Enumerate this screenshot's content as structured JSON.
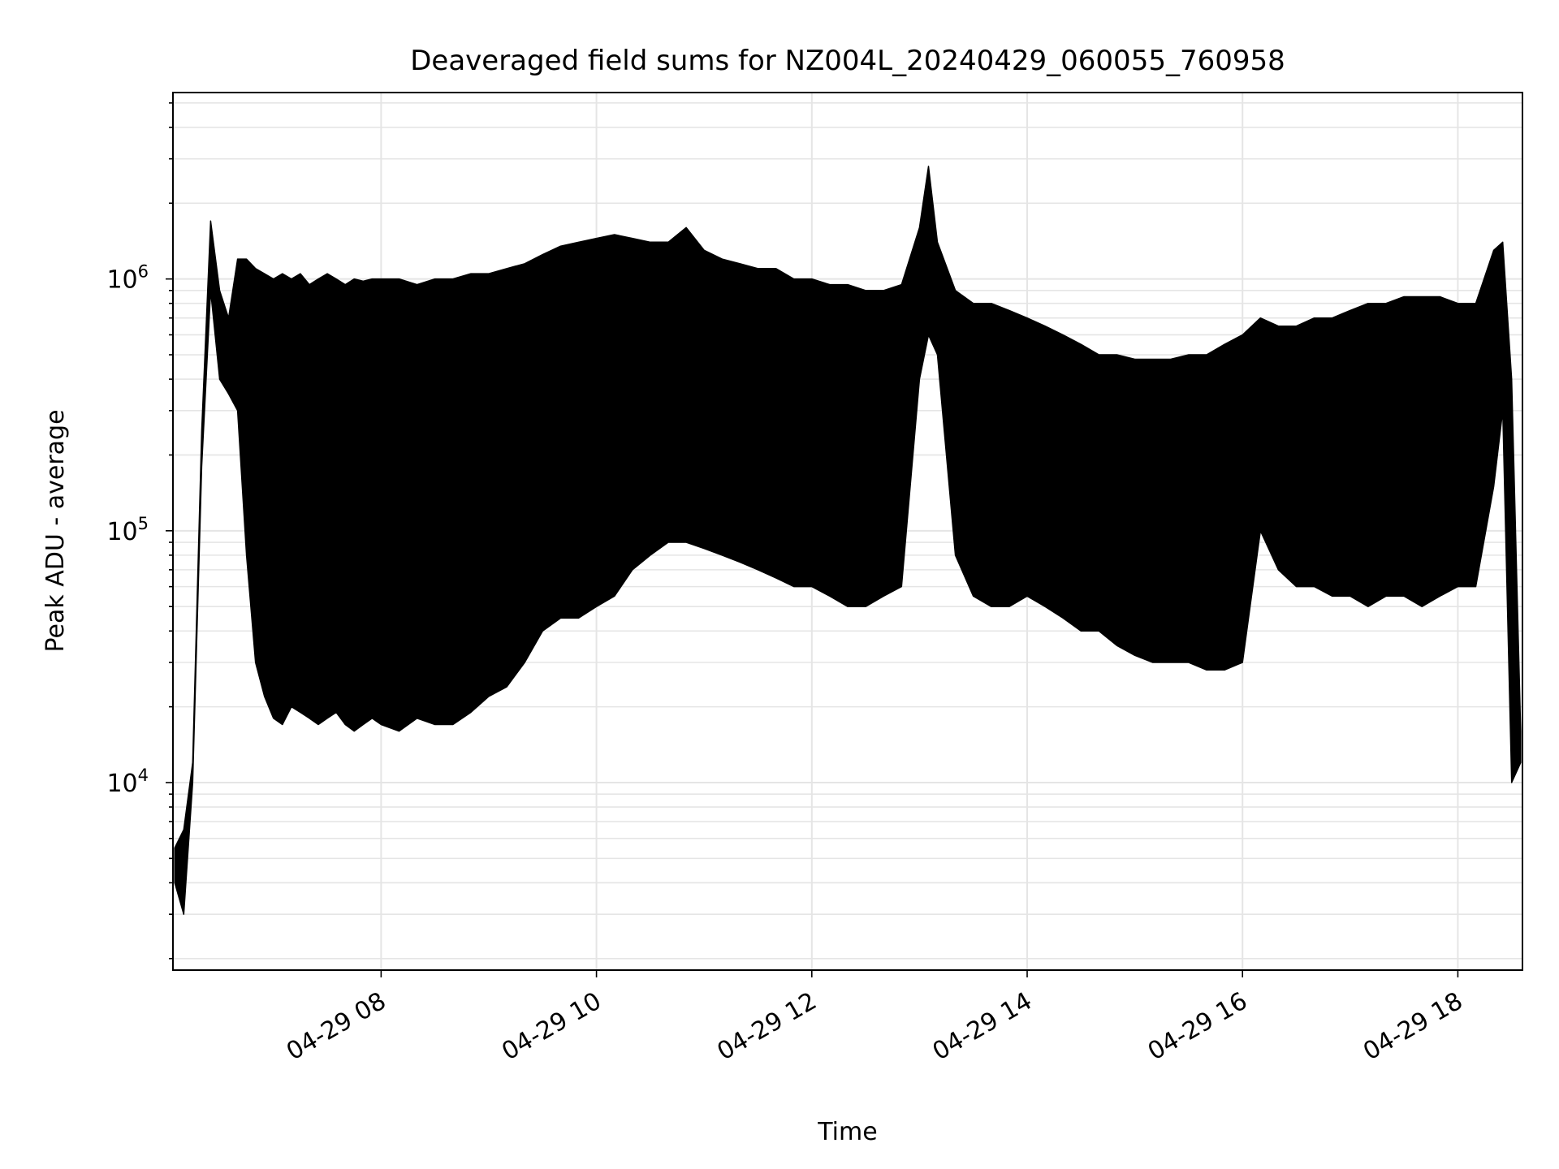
{
  "chart_data": {
    "type": "line",
    "title": "Deaveraged field sums for NZ004L_20240429_060055_760958",
    "xlabel": "Time",
    "ylabel": "Peak ADU - average",
    "yscale": "log",
    "ylim": [
      1800,
      5500000
    ],
    "xlim": [
      "04-29 06:04",
      "04-29 18:36"
    ],
    "x_ticks": [
      "04-29 08",
      "04-29 10",
      "04-29 12",
      "04-29 14",
      "04-29 16",
      "04-29 18"
    ],
    "y_tick_values": [
      10000,
      100000,
      1000000
    ],
    "y_tick_labels": [
      {
        "base": "10",
        "exp": "4"
      },
      {
        "base": "10",
        "exp": "5"
      },
      {
        "base": "10",
        "exp": "6"
      }
    ],
    "grid": "on",
    "series": [
      {
        "color": "#000000",
        "x": [
          "04-29 06:05",
          "04-29 06:10",
          "04-29 06:15",
          "04-29 06:20",
          "04-29 06:25",
          "04-29 06:30",
          "04-29 06:35",
          "04-29 06:40",
          "04-29 06:45",
          "04-29 06:50",
          "04-29 06:55",
          "04-29 07:00",
          "04-29 07:05",
          "04-29 07:10",
          "04-29 07:15",
          "04-29 07:20",
          "04-29 07:25",
          "04-29 07:30",
          "04-29 07:35",
          "04-29 07:40",
          "04-29 07:45",
          "04-29 07:50",
          "04-29 07:55",
          "04-29 08:00",
          "04-29 08:10",
          "04-29 08:20",
          "04-29 08:30",
          "04-29 08:40",
          "04-29 08:50",
          "04-29 09:00",
          "04-29 09:10",
          "04-29 09:20",
          "04-29 09:30",
          "04-29 09:40",
          "04-29 09:50",
          "04-29 10:00",
          "04-29 10:10",
          "04-29 10:20",
          "04-29 10:30",
          "04-29 10:40",
          "04-29 10:50",
          "04-29 11:00",
          "04-29 11:10",
          "04-29 11:20",
          "04-29 11:30",
          "04-29 11:40",
          "04-29 11:50",
          "04-29 12:00",
          "04-29 12:10",
          "04-29 12:20",
          "04-29 12:30",
          "04-29 12:40",
          "04-29 12:50",
          "04-29 13:00",
          "04-29 13:05",
          "04-29 13:10",
          "04-29 13:20",
          "04-29 13:30",
          "04-29 13:40",
          "04-29 13:50",
          "04-29 14:00",
          "04-29 14:10",
          "04-29 14:20",
          "04-29 14:30",
          "04-29 14:40",
          "04-29 14:50",
          "04-29 15:00",
          "04-29 15:10",
          "04-29 15:20",
          "04-29 15:30",
          "04-29 15:40",
          "04-29 15:50",
          "04-29 16:00",
          "04-29 16:10",
          "04-29 16:20",
          "04-29 16:30",
          "04-29 16:40",
          "04-29 16:50",
          "04-29 17:00",
          "04-29 17:10",
          "04-29 17:20",
          "04-29 17:30",
          "04-29 17:40",
          "04-29 17:50",
          "04-29 18:00",
          "04-29 18:10",
          "04-29 18:20",
          "04-29 18:25",
          "04-29 18:30",
          "04-29 18:35"
        ],
        "upper": [
          5500,
          6500,
          12000,
          250000,
          1700000,
          900000,
          700000,
          1200000,
          1200000,
          1100000,
          1050000,
          1000000,
          1050000,
          1000000,
          1050000,
          950000,
          1000000,
          1050000,
          1000000,
          950000,
          1000000,
          980000,
          1000000,
          1000000,
          1000000,
          950000,
          1000000,
          1000000,
          1050000,
          1050000,
          1100000,
          1150000,
          1250000,
          1350000,
          1400000,
          1450000,
          1500000,
          1450000,
          1400000,
          1400000,
          1600000,
          1300000,
          1200000,
          1150000,
          1100000,
          1100000,
          1000000,
          1000000,
          950000,
          950000,
          900000,
          900000,
          950000,
          1600000,
          2800000,
          1400000,
          900000,
          800000,
          800000,
          750000,
          700000,
          650000,
          600000,
          550000,
          500000,
          500000,
          480000,
          480000,
          480000,
          500000,
          500000,
          550000,
          600000,
          700000,
          650000,
          650000,
          700000,
          700000,
          750000,
          800000,
          800000,
          850000,
          850000,
          850000,
          800000,
          800000,
          1300000,
          1400000,
          400000,
          16000
        ],
        "lower": [
          4000,
          3000,
          10000,
          180000,
          900000,
          400000,
          350000,
          300000,
          80000,
          30000,
          22000,
          18000,
          17000,
          20000,
          19000,
          18000,
          17000,
          18000,
          19000,
          17000,
          16000,
          17000,
          18000,
          17000,
          16000,
          18000,
          17000,
          17000,
          19000,
          22000,
          24000,
          30000,
          40000,
          45000,
          45000,
          50000,
          55000,
          70000,
          80000,
          90000,
          90000,
          85000,
          80000,
          75000,
          70000,
          65000,
          60000,
          60000,
          55000,
          50000,
          50000,
          55000,
          60000,
          400000,
          600000,
          500000,
          80000,
          55000,
          50000,
          50000,
          55000,
          50000,
          45000,
          40000,
          40000,
          35000,
          32000,
          30000,
          30000,
          30000,
          28000,
          28000,
          30000,
          100000,
          70000,
          60000,
          60000,
          55000,
          55000,
          50000,
          55000,
          55000,
          50000,
          55000,
          60000,
          60000,
          150000,
          300000,
          10000,
          12000
        ]
      }
    ]
  }
}
